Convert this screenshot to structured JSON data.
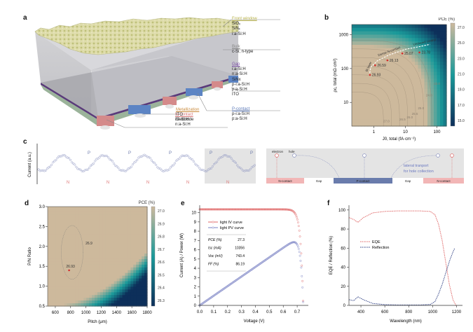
{
  "panels": {
    "a": {
      "label": "a",
      "annotations": [
        {
          "title": "Front window",
          "title_color": "#b8b24a",
          "lines": [
            "SiOₓ",
            "SiNₓ",
            "i:a-Si:H"
          ]
        },
        {
          "title": "Bulk",
          "title_color": "#888888",
          "lines": [
            "c-Si, n-type"
          ]
        },
        {
          "title": "Gap",
          "title_color": "#7b4fa6",
          "lines": [
            "i:a-Si:H",
            "n:a-Si:H",
            "SiNx",
            "p-i:a-Si:H",
            "p:a-Si:H",
            "ITO"
          ]
        },
        {
          "title": "P-contact",
          "title_color": "#5a78b8",
          "lines": [
            "p-i:a-Si:H",
            "p:a-Si:H"
          ]
        },
        {
          "title": "N-contact",
          "title_color": "#d9787a",
          "lines": [
            "i:a-Si:H",
            "n:a-Si:H"
          ]
        },
        {
          "title": "Metallization",
          "title_color": "#c98a3c",
          "lines": [
            "ITO",
            "Electrode"
          ]
        }
      ]
    },
    "b": {
      "label": "b",
      "colorbar_title": "PCE (%)",
      "colorbar_ticks": [
        "27.0",
        "25.0",
        "23.0",
        "21.0",
        "19.0",
        "17.0",
        "15.0"
      ],
      "annotations": [
        "Undoped control",
        "Dense N-contact",
        "Bi layer"
      ]
    },
    "c": {
      "label": "c",
      "ylabel": "Current (a.u.)",
      "peak_labels": [
        "P",
        "P",
        "P",
        "P",
        "P"
      ],
      "valley_labels": [
        "N",
        "N",
        "N",
        "N",
        "N",
        "N"
      ],
      "schematic": {
        "electron_label": "electron",
        "hole_label": "hole",
        "segments": [
          "N-contact",
          "Gap",
          "P-contact",
          "Gap",
          "N-contact"
        ],
        "note_line1": "lateral tranport",
        "note_line2": "for hole collection"
      }
    },
    "d": {
      "label": "d",
      "colorbar_title": "PCE (%)",
      "colorbar_ticks": [
        "27.0",
        "26.9",
        "26.8",
        "26.7",
        "26.6",
        "26.5",
        "26.4",
        "26.3"
      ],
      "contour_label": "26.9",
      "point_label": "26.93"
    },
    "e": {
      "label": "e",
      "stats_table": [
        [
          "PCE (%)",
          "27.3"
        ],
        [
          "Isc (mA)",
          "10356"
        ],
        [
          "Voc (mV)",
          "743.4"
        ],
        [
          "FF (%)",
          "86.19"
        ]
      ]
    },
    "f": {
      "label": "f"
    }
  },
  "colors": {
    "tan": "#cdb99c",
    "teal": "#1a9a9a",
    "navy": "#0d2f5a",
    "red": "#e06a6a",
    "blue": "#7a82c4",
    "pcontact": "#6a7cac",
    "ncontact": "#f0b8b8"
  },
  "chart_data": [
    {
      "panel": "b",
      "type": "heatmap",
      "title": "",
      "xlabel": "J0, total (fA·cm⁻²)",
      "ylabel": "ρc, total (mΩ·cm²)",
      "xscale": "log",
      "yscale": "log",
      "xlim": [
        0.2,
        200
      ],
      "ylim": [
        2,
        2000
      ],
      "xticks": [
        "1",
        "10",
        "100"
      ],
      "yticks": [
        "10",
        "100",
        "1000"
      ],
      "zlabel": "PCE (%)",
      "zlim": [
        14,
        28
      ],
      "contour_levels": [
        {
          "label": "27.0",
          "x": 2.0,
          "y": 2.6
        },
        {
          "label": "26.5",
          "x": 6.5,
          "y": 2.9
        },
        {
          "label": "26.0",
          "x": 11,
          "y": 3.4
        },
        {
          "label": "25.5",
          "x": 16,
          "y": 4.3
        },
        {
          "label": "25.0",
          "x": 25,
          "y": 6.3
        },
        {
          "label": "24.0",
          "x": 45,
          "y": 15
        },
        {
          "label": "23.0",
          "x": 80,
          "y": 33
        }
      ],
      "points": [
        {
          "x": 0.75,
          "y": 65,
          "label": "26.93"
        },
        {
          "x": 1.1,
          "y": 125,
          "label": "26.59"
        },
        {
          "x": 2.7,
          "y": 175,
          "label": "26.13"
        },
        {
          "x": 8,
          "y": 280,
          "label": "25.07"
        },
        {
          "x": 28,
          "y": 300,
          "label": "23.78"
        }
      ]
    },
    {
      "panel": "c",
      "type": "line",
      "ylabel": "Current (a.u.)",
      "description": "periodic current profile with 5 peaks (P) and 6 valleys (N)",
      "periods": 5
    },
    {
      "panel": "d",
      "type": "heatmap",
      "xlabel": "Pitch (μm)",
      "ylabel": "P/N Ratio",
      "xlim": [
        500,
        1800
      ],
      "ylim": [
        0.5,
        3.0
      ],
      "xticks": [
        "600",
        "800",
        "1000",
        "1200",
        "1400",
        "1600",
        "1800"
      ],
      "yticks": [
        "0.5",
        "1.0",
        "1.5",
        "2.0",
        "2.5",
        "3.0"
      ],
      "zlabel": "PCE (%)",
      "zlim": [
        26.25,
        27.0
      ],
      "optimum": {
        "x": 780,
        "y": 1.4,
        "label": "26.93"
      },
      "contour": {
        "level": 26.9,
        "label": "26.9"
      }
    },
    {
      "panel": "e",
      "type": "line",
      "xlabel": "Voltage (V)",
      "ylabel": "Current (A) / Power (W)",
      "xlim": [
        0.0,
        0.78
      ],
      "ylim": [
        0,
        10.8
      ],
      "xticks": [
        "0.0",
        "0.1",
        "0.2",
        "0.3",
        "0.4",
        "0.5",
        "0.6",
        "0.7"
      ],
      "yticks": [
        "0",
        "1",
        "2",
        "3",
        "4",
        "5",
        "6",
        "7",
        "8",
        "9",
        "10"
      ],
      "series": [
        {
          "name": "light IV curve",
          "color": "#e06a6a",
          "Isc": 10.356,
          "Voc": 0.7434,
          "n_vt": 0.0185
        },
        {
          "name": "light PV curve",
          "color": "#7a82c4"
        }
      ]
    },
    {
      "panel": "f",
      "type": "line",
      "xlabel": "Wavelength (nm)",
      "ylabel": "EQE / Reflection (%)",
      "xlim": [
        300,
        1250
      ],
      "ylim": [
        0,
        105
      ],
      "xticks": [
        "400",
        "600",
        "800",
        "1000",
        "1200"
      ],
      "yticks": [
        "0",
        "20",
        "40",
        "60",
        "80",
        "100"
      ],
      "series": [
        {
          "name": "EQE",
          "color": "#e06a6a",
          "x": [
            300,
            340,
            375,
            420,
            500,
            600,
            700,
            800,
            900,
            980,
            1020,
            1050,
            1080,
            1110,
            1140,
            1170,
            1195
          ],
          "values": [
            92,
            90,
            87,
            92,
            97,
            98.5,
            99,
            99,
            99,
            98.5,
            95,
            85,
            68,
            45,
            22,
            6,
            0
          ]
        },
        {
          "name": "Reflection",
          "color": "#3a4a8a",
          "x": [
            300,
            340,
            375,
            420,
            500,
            600,
            700,
            800,
            900,
            980,
            1020,
            1050,
            1080,
            1110,
            1140,
            1170,
            1185
          ],
          "values": [
            6,
            5,
            9,
            6,
            2,
            0.8,
            0.5,
            0.5,
            0.5,
            1,
            4,
            12,
            22,
            34,
            46,
            56,
            60
          ]
        }
      ]
    }
  ]
}
